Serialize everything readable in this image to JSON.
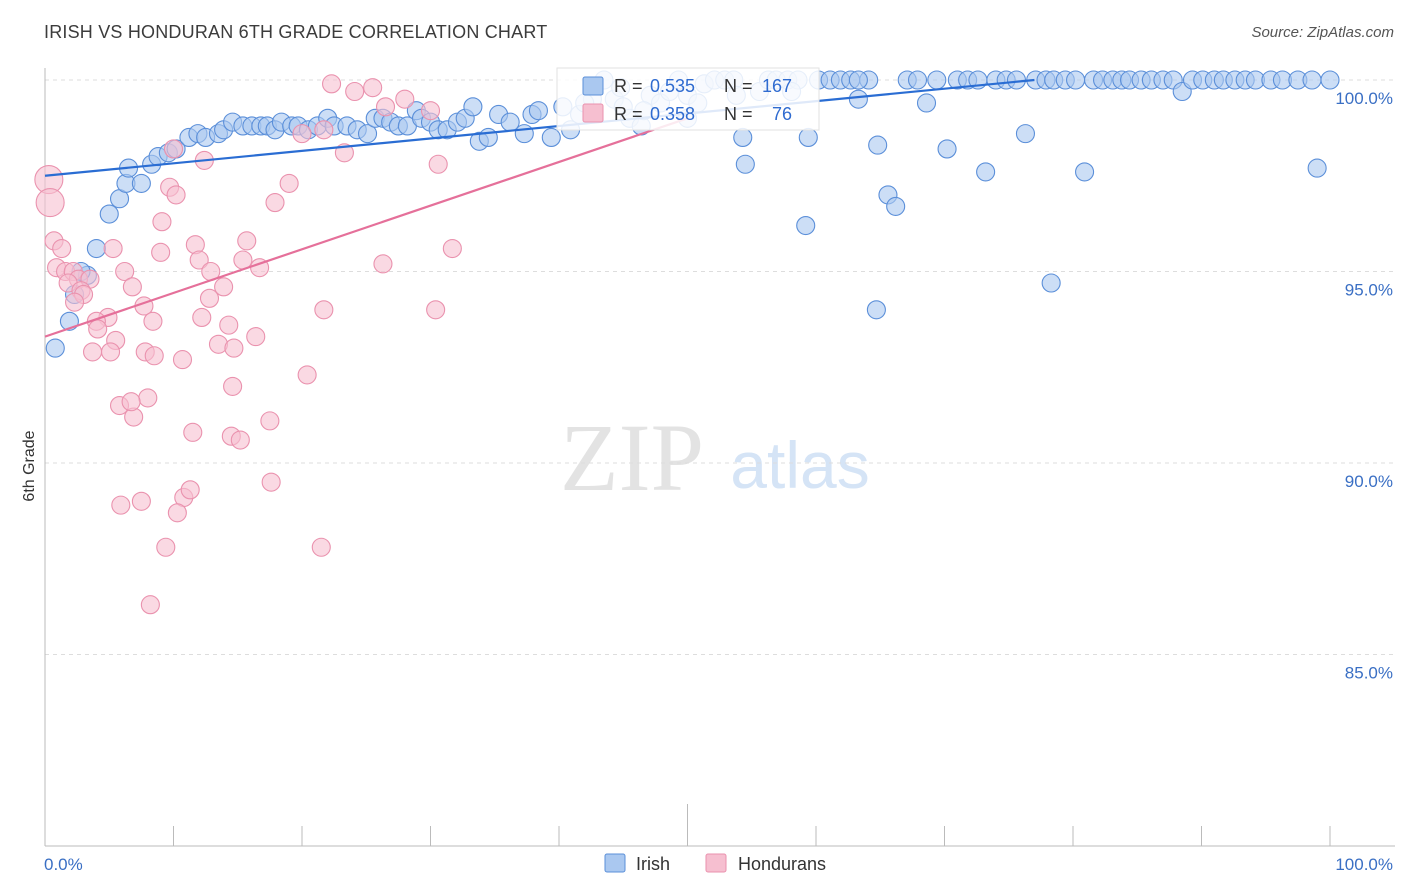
{
  "title": "IRISH VS HONDURAN 6TH GRADE CORRELATION CHART",
  "source": "Source: ZipAtlas.com",
  "watermark": {
    "zip": "ZIP",
    "atlas": "atlas"
  },
  "colors": {
    "irish_fill": "#aac8f0",
    "irish_stroke": "#5b8fd9",
    "irish_line": "#2a6dd3",
    "hond_fill": "#f6bfd0",
    "hond_stroke": "#ea92ae",
    "hond_line": "#e5709a",
    "axis_text": "#3a6fc4",
    "grid": "#dddddd"
  },
  "stats": {
    "irish": {
      "r_label": "R = ",
      "r_value": "0.535",
      "n_label": "N = ",
      "n_value": "167"
    },
    "hondurans": {
      "r_label": "R = ",
      "r_value": "0.358",
      "n_label": "N = ",
      "n_value": "76"
    }
  },
  "legend": {
    "irish": "Irish",
    "hondurans": "Hondurans"
  },
  "chart_data": {
    "type": "scatter",
    "title": "IRISH VS HONDURAN 6TH GRADE CORRELATION CHART",
    "xlabel": "",
    "ylabel": "6th Grade",
    "xlim": [
      0,
      100
    ],
    "ylim": [
      80.5,
      100.5
    ],
    "x_tick_labels": [
      "0.0%",
      "100.0%"
    ],
    "y_ticks": [
      85,
      90,
      95,
      100
    ],
    "y_tick_labels": [
      "85.0%",
      "90.0%",
      "95.0%",
      "100.0%"
    ],
    "series": [
      {
        "name": "Irish",
        "trend": {
          "x": [
            0,
            77
          ],
          "y": [
            97.5,
            100.0
          ]
        },
        "points": [
          [
            0.8,
            93.0
          ],
          [
            1.9,
            93.7
          ],
          [
            2.3,
            94.4
          ],
          [
            3.3,
            94.9
          ],
          [
            4.0,
            95.6
          ],
          [
            2.8,
            95.0
          ],
          [
            5.0,
            96.5
          ],
          [
            5.8,
            96.9
          ],
          [
            6.3,
            97.3
          ],
          [
            7.5,
            97.3
          ],
          [
            6.5,
            97.7
          ],
          [
            8.3,
            97.8
          ],
          [
            8.8,
            98.0
          ],
          [
            9.6,
            98.1
          ],
          [
            10.2,
            98.2
          ],
          [
            11.2,
            98.5
          ],
          [
            11.9,
            98.6
          ],
          [
            12.5,
            98.5
          ],
          [
            13.5,
            98.6
          ],
          [
            13.9,
            98.7
          ],
          [
            14.6,
            98.9
          ],
          [
            15.4,
            98.8
          ],
          [
            16.1,
            98.8
          ],
          [
            16.8,
            98.8
          ],
          [
            17.3,
            98.8
          ],
          [
            17.9,
            98.7
          ],
          [
            18.4,
            98.9
          ],
          [
            19.2,
            98.8
          ],
          [
            19.7,
            98.8
          ],
          [
            20.5,
            98.7
          ],
          [
            21.2,
            98.8
          ],
          [
            22.0,
            99.0
          ],
          [
            22.5,
            98.8
          ],
          [
            23.5,
            98.8
          ],
          [
            24.3,
            98.7
          ],
          [
            25.1,
            98.6
          ],
          [
            25.7,
            99.0
          ],
          [
            26.3,
            99.0
          ],
          [
            26.9,
            98.9
          ],
          [
            27.5,
            98.8
          ],
          [
            28.2,
            98.8
          ],
          [
            28.9,
            99.2
          ],
          [
            29.3,
            99.0
          ],
          [
            30.0,
            98.9
          ],
          [
            30.6,
            98.7
          ],
          [
            31.3,
            98.7
          ],
          [
            32.1,
            98.9
          ],
          [
            32.7,
            99.0
          ],
          [
            33.3,
            99.3
          ],
          [
            33.8,
            98.4
          ],
          [
            34.5,
            98.5
          ],
          [
            35.3,
            99.1
          ],
          [
            36.2,
            98.9
          ],
          [
            37.3,
            98.6
          ],
          [
            37.9,
            99.1
          ],
          [
            38.4,
            99.2
          ],
          [
            39.4,
            98.5
          ],
          [
            40.3,
            99.3
          ],
          [
            40.9,
            98.7
          ],
          [
            41.6,
            99.1
          ],
          [
            42.6,
            99.5
          ],
          [
            43.5,
            100.0
          ],
          [
            44.3,
            99.5
          ],
          [
            45.0,
            99.3
          ],
          [
            45.5,
            99.0
          ],
          [
            46.4,
            98.8
          ],
          [
            47.1,
            99.6
          ],
          [
            47.9,
            99.4
          ],
          [
            48.6,
            99.7
          ],
          [
            49.3,
            100.0
          ],
          [
            50.0,
            99.6
          ],
          [
            50.8,
            99.4
          ],
          [
            51.3,
            99.9
          ],
          [
            52.1,
            100.0
          ],
          [
            52.9,
            100.0
          ],
          [
            53.6,
            100.0
          ],
          [
            54.5,
            97.8
          ],
          [
            55.6,
            99.7
          ],
          [
            56.3,
            100.0
          ],
          [
            56.9,
            100.0
          ],
          [
            57.8,
            100.0
          ],
          [
            58.6,
            100.0
          ],
          [
            59.4,
            98.5
          ],
          [
            60.2,
            100.0
          ],
          [
            61.1,
            100.0
          ],
          [
            61.9,
            100.0
          ],
          [
            62.7,
            100.0
          ],
          [
            63.3,
            99.5
          ],
          [
            64.1,
            100.0
          ],
          [
            64.8,
            98.3
          ],
          [
            65.6,
            97.0
          ],
          [
            66.2,
            96.7
          ],
          [
            67.1,
            100.0
          ],
          [
            67.9,
            100.0
          ],
          [
            68.6,
            99.4
          ],
          [
            69.4,
            100.0
          ],
          [
            70.2,
            98.2
          ],
          [
            71.0,
            100.0
          ],
          [
            71.8,
            100.0
          ],
          [
            72.6,
            100.0
          ],
          [
            73.2,
            97.6
          ],
          [
            74.0,
            100.0
          ],
          [
            74.8,
            100.0
          ],
          [
            75.6,
            100.0
          ],
          [
            76.3,
            98.6
          ],
          [
            77.1,
            100.0
          ],
          [
            77.9,
            100.0
          ],
          [
            78.5,
            100.0
          ],
          [
            79.4,
            100.0
          ],
          [
            80.2,
            100.0
          ],
          [
            80.9,
            97.6
          ],
          [
            81.6,
            100.0
          ],
          [
            82.3,
            100.0
          ],
          [
            83.1,
            100.0
          ],
          [
            83.8,
            100.0
          ],
          [
            84.4,
            100.0
          ],
          [
            85.3,
            100.0
          ],
          [
            86.1,
            100.0
          ],
          [
            87.0,
            100.0
          ],
          [
            87.8,
            100.0
          ],
          [
            88.5,
            99.7
          ],
          [
            89.3,
            100.0
          ],
          [
            90.1,
            100.0
          ],
          [
            91.0,
            100.0
          ],
          [
            91.7,
            100.0
          ],
          [
            92.6,
            100.0
          ],
          [
            93.4,
            100.0
          ],
          [
            94.2,
            100.0
          ],
          [
            95.4,
            100.0
          ],
          [
            96.3,
            100.0
          ],
          [
            97.5,
            100.0
          ],
          [
            98.6,
            100.0
          ],
          [
            100.0,
            100.0
          ],
          [
            78.3,
            94.7
          ],
          [
            64.7,
            94.0
          ],
          [
            59.2,
            96.2
          ],
          [
            99.0,
            97.7
          ],
          [
            54.3,
            98.5
          ],
          [
            50.0,
            99.0
          ],
          [
            53.8,
            99.6
          ],
          [
            46.6,
            99.2
          ],
          [
            42.0,
            99.4
          ],
          [
            44.8,
            99.8
          ],
          [
            63.3,
            100.0
          ],
          [
            58.1,
            99.7
          ]
        ]
      },
      {
        "name": "Hondurans",
        "trend": {
          "x": [
            0,
            50
          ],
          "y": [
            93.3,
            99.0
          ]
        },
        "points": [
          [
            0.3,
            97.4
          ],
          [
            0.4,
            96.8
          ],
          [
            0.7,
            95.8
          ],
          [
            1.3,
            95.6
          ],
          [
            0.9,
            95.1
          ],
          [
            1.6,
            95.0
          ],
          [
            2.2,
            95.0
          ],
          [
            2.6,
            94.8
          ],
          [
            3.5,
            94.8
          ],
          [
            1.8,
            94.7
          ],
          [
            2.8,
            94.5
          ],
          [
            3.0,
            94.4
          ],
          [
            2.3,
            94.2
          ],
          [
            5.3,
            95.6
          ],
          [
            6.2,
            95.0
          ],
          [
            6.8,
            94.6
          ],
          [
            7.7,
            94.1
          ],
          [
            8.4,
            93.7
          ],
          [
            4.9,
            93.8
          ],
          [
            4.0,
            93.7
          ],
          [
            4.1,
            93.5
          ],
          [
            5.5,
            93.2
          ],
          [
            5.1,
            92.9
          ],
          [
            3.7,
            92.9
          ],
          [
            7.8,
            92.9
          ],
          [
            8.5,
            92.8
          ],
          [
            10.7,
            92.7
          ],
          [
            9.1,
            96.3
          ],
          [
            9.0,
            95.5
          ],
          [
            9.7,
            97.2
          ],
          [
            10.2,
            97.0
          ],
          [
            12.4,
            97.9
          ],
          [
            11.7,
            95.7
          ],
          [
            12.0,
            95.3
          ],
          [
            12.9,
            95.0
          ],
          [
            12.8,
            94.3
          ],
          [
            13.9,
            94.6
          ],
          [
            14.3,
            93.6
          ],
          [
            13.5,
            93.1
          ],
          [
            12.2,
            93.8
          ],
          [
            14.7,
            93.0
          ],
          [
            15.4,
            95.3
          ],
          [
            15.7,
            95.8
          ],
          [
            16.4,
            93.3
          ],
          [
            16.7,
            95.1
          ],
          [
            17.9,
            96.8
          ],
          [
            19.0,
            97.3
          ],
          [
            20.4,
            92.3
          ],
          [
            20.0,
            98.6
          ],
          [
            21.7,
            98.7
          ],
          [
            22.3,
            99.9
          ],
          [
            23.3,
            98.1
          ],
          [
            24.1,
            99.7
          ],
          [
            25.5,
            99.8
          ],
          [
            26.5,
            99.3
          ],
          [
            28.0,
            99.5
          ],
          [
            30.0,
            99.2
          ],
          [
            30.6,
            97.8
          ],
          [
            31.7,
            95.6
          ],
          [
            30.4,
            94.0
          ],
          [
            26.3,
            95.2
          ],
          [
            10.0,
            98.2
          ],
          [
            14.5,
            90.7
          ],
          [
            15.2,
            90.6
          ],
          [
            17.5,
            91.1
          ],
          [
            14.6,
            92.0
          ],
          [
            21.7,
            94.0
          ],
          [
            8.0,
            91.7
          ],
          [
            5.8,
            91.5
          ],
          [
            6.9,
            91.2
          ],
          [
            6.7,
            91.6
          ],
          [
            5.9,
            88.9
          ],
          [
            7.5,
            89.0
          ],
          [
            10.8,
            89.1
          ],
          [
            10.3,
            88.7
          ],
          [
            11.3,
            89.3
          ],
          [
            11.5,
            90.8
          ],
          [
            17.6,
            89.5
          ],
          [
            8.2,
            86.3
          ],
          [
            9.4,
            87.8
          ],
          [
            21.5,
            87.8
          ]
        ]
      }
    ]
  }
}
